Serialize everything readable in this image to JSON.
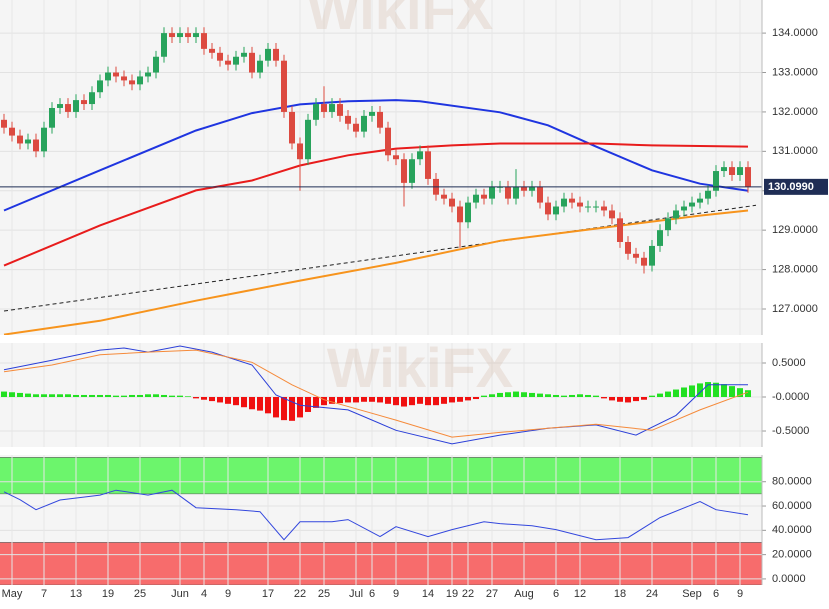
{
  "chart_data": [
    {
      "type": "candlestick",
      "open": [
        131.8,
        131.6,
        131.4,
        131.2,
        131.3,
        131.0,
        131.6,
        132.1,
        132.2,
        132.0,
        132.3,
        132.2,
        132.5,
        132.8,
        133.0,
        132.9,
        132.8,
        132.7,
        132.9,
        133.0,
        133.4,
        134.0,
        133.9,
        134.0,
        133.9,
        134.0,
        133.6,
        133.5,
        133.3,
        133.2,
        133.4,
        133.5,
        133.0,
        133.3,
        133.6,
        133.3,
        132.0,
        131.2,
        130.8,
        131.8,
        132.2,
        132.0,
        132.2,
        131.9,
        131.7,
        131.5,
        131.9,
        132.0,
        131.6,
        130.9,
        130.8,
        130.2,
        130.8,
        131.0,
        130.3,
        129.9,
        129.8,
        129.6,
        129.2,
        129.7,
        129.9,
        129.8,
        130.1,
        130.1,
        129.8,
        130.1,
        130.0,
        130.1,
        129.7,
        129.4,
        129.6,
        129.8,
        129.7,
        129.6,
        129.6,
        129.6,
        129.5,
        129.3,
        128.7,
        128.4,
        128.3,
        128.1,
        128.6,
        129.0,
        129.3,
        129.5,
        129.6,
        129.7,
        129.8,
        130.0,
        130.5,
        130.6,
        130.4,
        130.6
      ],
      "high": [
        131.95,
        131.75,
        131.55,
        131.45,
        131.45,
        131.75,
        132.25,
        132.35,
        132.35,
        132.45,
        132.45,
        132.65,
        132.95,
        133.15,
        133.15,
        133.05,
        132.95,
        133.05,
        133.15,
        133.55,
        134.15,
        134.15,
        134.15,
        134.15,
        134.15,
        134.15,
        133.75,
        133.65,
        133.45,
        133.55,
        133.65,
        133.65,
        133.45,
        133.75,
        133.75,
        133.45,
        132.15,
        131.35,
        131.95,
        132.35,
        132.65,
        132.35,
        132.35,
        132.05,
        131.85,
        132.05,
        132.15,
        132.15,
        131.75,
        131.05,
        130.95,
        130.95,
        131.15,
        131.15,
        130.45,
        130.05,
        129.95,
        129.75,
        129.85,
        130.05,
        130.05,
        130.25,
        130.25,
        130.25,
        130.55,
        130.25,
        130.25,
        130.25,
        129.85,
        129.75,
        129.95,
        129.95,
        129.85,
        129.75,
        129.75,
        129.75,
        129.65,
        129.45,
        128.85,
        128.55,
        128.45,
        128.75,
        129.15,
        129.45,
        129.65,
        129.75,
        129.85,
        129.95,
        130.15,
        130.65,
        130.75,
        130.75,
        130.75,
        130.75
      ],
      "low": [
        131.45,
        131.25,
        131.05,
        131.05,
        130.85,
        130.85,
        131.45,
        131.95,
        131.85,
        131.85,
        132.05,
        132.05,
        132.35,
        132.65,
        132.75,
        132.65,
        132.55,
        132.55,
        132.75,
        132.85,
        133.25,
        133.75,
        133.75,
        133.75,
        133.75,
        133.45,
        133.35,
        133.15,
        133.05,
        133.05,
        133.25,
        132.85,
        132.85,
        133.15,
        133.15,
        131.85,
        131.05,
        130.0,
        130.65,
        131.65,
        131.85,
        131.85,
        131.75,
        131.55,
        131.35,
        131.35,
        131.75,
        131.45,
        130.75,
        130.65,
        129.6,
        130.05,
        130.65,
        130.15,
        129.75,
        129.65,
        129.45,
        128.55,
        129.05,
        129.55,
        129.65,
        129.65,
        129.95,
        129.65,
        129.65,
        129.85,
        129.85,
        129.55,
        129.25,
        129.25,
        129.45,
        129.55,
        129.45,
        129.45,
        129.45,
        129.35,
        129.15,
        128.55,
        128.25,
        128.15,
        127.9,
        127.95,
        128.45,
        128.85,
        129.15,
        129.35,
        129.45,
        129.55,
        129.65,
        129.85,
        130.35,
        130.25,
        130.25,
        129.95
      ],
      "close": [
        131.6,
        131.4,
        131.2,
        131.3,
        131.0,
        131.6,
        132.1,
        132.2,
        132.0,
        132.3,
        132.2,
        132.5,
        132.8,
        133.0,
        132.9,
        132.8,
        132.7,
        132.9,
        133.0,
        133.4,
        134.0,
        133.9,
        134.0,
        133.9,
        134.0,
        133.6,
        133.5,
        133.3,
        133.2,
        133.4,
        133.5,
        133.0,
        133.3,
        133.6,
        133.3,
        132.0,
        131.2,
        130.8,
        131.8,
        132.2,
        132.0,
        132.2,
        131.9,
        131.7,
        131.5,
        131.9,
        132.0,
        131.6,
        130.9,
        130.8,
        130.2,
        130.8,
        131.0,
        130.3,
        129.9,
        129.8,
        129.6,
        129.2,
        129.7,
        129.9,
        129.8,
        130.1,
        130.1,
        129.8,
        130.1,
        130.0,
        130.1,
        129.7,
        129.4,
        129.6,
        129.8,
        129.7,
        129.6,
        129.6,
        129.6,
        129.5,
        129.3,
        128.7,
        128.4,
        128.3,
        128.1,
        128.6,
        129.0,
        129.3,
        129.5,
        129.6,
        129.7,
        129.8,
        130.0,
        130.5,
        130.6,
        130.4,
        130.6,
        130.1
      ],
      "up_color": "#28a35c",
      "down_color": "#dc4a40",
      "ylim": [
        126.34,
        134.84
      ],
      "yticks": [
        {
          "value": 127,
          "label": "127.0000"
        },
        {
          "value": 128,
          "label": "128.0000"
        },
        {
          "value": 129,
          "label": "129.0000"
        },
        {
          "value": 130,
          "label": "130.0000"
        },
        {
          "value": 131,
          "label": "131.0000"
        },
        {
          "value": 132,
          "label": "132.0000"
        },
        {
          "value": 133,
          "label": "133.0000"
        },
        {
          "value": 134,
          "label": "134.0000"
        }
      ],
      "last_price": {
        "value": 130.099,
        "label": "130.0990"
      },
      "last_price_color": "#1f2d55",
      "series": [
        {
          "color": "#1f35e0",
          "x": [
            0,
            12,
            24,
            31,
            37,
            43,
            49,
            52,
            62,
            68,
            74,
            81,
            87,
            93
          ],
          "values": [
            129.5,
            130.52,
            131.53,
            131.97,
            132.19,
            132.27,
            132.3,
            132.27,
            131.99,
            131.66,
            131.12,
            130.52,
            130.18,
            130.0
          ]
        },
        {
          "color": "#e81c1c",
          "x": [
            0,
            12,
            24,
            31,
            37,
            43,
            49,
            56,
            62,
            74,
            81,
            93
          ],
          "values": [
            128.1,
            129.12,
            130.01,
            130.26,
            130.64,
            130.9,
            131.07,
            131.15,
            131.2,
            131.2,
            131.15,
            131.12
          ]
        },
        {
          "color": "#f7941d",
          "x": [
            0,
            12,
            24,
            37,
            49,
            62,
            74,
            87,
            93
          ],
          "values": [
            126.35,
            126.7,
            127.21,
            127.72,
            128.17,
            128.73,
            129.04,
            129.37,
            129.5
          ]
        }
      ],
      "trendline": {
        "color": "#222222",
        "x": [
          0,
          94
        ],
        "values": [
          126.95,
          129.63
        ]
      },
      "grid": true,
      "watermark": "WikiFX"
    },
    {
      "type": "macd",
      "histogram": [
        0.08,
        0.07,
        0.06,
        0.05,
        0.04,
        0.04,
        0.04,
        0.04,
        0.04,
        0.03,
        0.03,
        0.03,
        0.03,
        0.03,
        0.02,
        0.02,
        0.03,
        0.03,
        0.04,
        0.04,
        0.03,
        0.02,
        0.02,
        0.01,
        -0.02,
        -0.04,
        -0.06,
        -0.08,
        -0.1,
        -0.12,
        -0.15,
        -0.18,
        -0.2,
        -0.24,
        -0.3,
        -0.34,
        -0.35,
        -0.3,
        -0.22,
        -0.16,
        -0.12,
        -0.1,
        -0.09,
        -0.08,
        -0.08,
        -0.07,
        -0.07,
        -0.08,
        -0.1,
        -0.12,
        -0.14,
        -0.12,
        -0.1,
        -0.12,
        -0.12,
        -0.1,
        -0.08,
        -0.07,
        -0.05,
        -0.03,
        0.02,
        0.04,
        0.06,
        0.07,
        0.08,
        0.07,
        0.06,
        0.05,
        0.04,
        0.03,
        0.02,
        0.03,
        0.04,
        0.03,
        0.02,
        -0.02,
        -0.05,
        -0.07,
        -0.08,
        -0.06,
        -0.04,
        0.02,
        0.05,
        0.08,
        0.11,
        0.14,
        0.17,
        0.2,
        0.22,
        0.21,
        0.19,
        0.16,
        0.13,
        0.1
      ],
      "positive_color": "#22e022",
      "negative_color": "#f01010",
      "series": [
        {
          "color": "#2b3fd8",
          "x": [
            0,
            6,
            12,
            15,
            18,
            22,
            26,
            31,
            34,
            37,
            43,
            49,
            56,
            62,
            68,
            74,
            79,
            84,
            88,
            93
          ],
          "values": [
            0.4,
            0.54,
            0.69,
            0.72,
            0.66,
            0.75,
            0.66,
            0.47,
            0.03,
            -0.12,
            -0.19,
            -0.49,
            -0.69,
            -0.56,
            -0.46,
            -0.41,
            -0.56,
            -0.27,
            0.18,
            0.18
          ]
        },
        {
          "color": "#f58a3a",
          "x": [
            0,
            6,
            12,
            18,
            24,
            31,
            36,
            40,
            49,
            56,
            62,
            68,
            74,
            81,
            87,
            93
          ],
          "values": [
            0.37,
            0.47,
            0.62,
            0.66,
            0.69,
            0.51,
            0.18,
            -0.04,
            -0.34,
            -0.59,
            -0.52,
            -0.46,
            -0.4,
            -0.49,
            -0.19,
            0.07
          ]
        }
      ],
      "ylim": [
        -0.735,
        0.794
      ],
      "yticks": [
        {
          "value": -0.5,
          "label": "-0.5000"
        },
        {
          "value": 0,
          "label": "-0.0000"
        },
        {
          "value": 0.5,
          "label": "0.5000"
        }
      ],
      "watermark": "WikiFX"
    },
    {
      "type": "line",
      "categories": [
        null,
        "May",
        null,
        null,
        null,
        "7",
        null,
        null,
        null,
        "13",
        null,
        null,
        null,
        "19",
        null,
        null,
        null,
        "25",
        null,
        null,
        null,
        null,
        "Jun",
        null,
        null,
        "4",
        null,
        null,
        "9",
        null,
        null,
        null,
        null,
        "17",
        null,
        null,
        null,
        "22",
        null,
        null,
        "25",
        null,
        null,
        null,
        "Jul",
        null,
        "6",
        null,
        null,
        "9",
        null,
        null,
        null,
        "14",
        null,
        null,
        "19",
        null,
        "22",
        null,
        null,
        "27",
        null,
        null,
        null,
        "Aug",
        null,
        null,
        null,
        "6",
        null,
        null,
        "12",
        null,
        null,
        null,
        null,
        "18",
        null,
        null,
        null,
        "24",
        null,
        null,
        null,
        null,
        "Sep",
        null,
        null,
        "6",
        null,
        null,
        "9",
        null
      ],
      "series": [
        {
          "color": "#3347dd",
          "x": [
            0,
            2,
            4,
            7,
            12,
            14,
            18,
            21,
            24,
            29,
            32,
            35,
            37,
            41,
            43,
            47,
            49,
            53,
            56,
            60,
            62,
            66,
            69,
            74,
            78,
            82,
            87,
            89,
            93
          ],
          "values": [
            71.7,
            65.2,
            57,
            65,
            69,
            73,
            69,
            73,
            58.6,
            57,
            55.3,
            32.3,
            47,
            47,
            48.8,
            34.8,
            43,
            34.8,
            40.6,
            47,
            45.5,
            43.7,
            40.6,
            32.3,
            34,
            50.5,
            63.7,
            57,
            52.8
          ]
        }
      ],
      "zones": [
        {
          "from": 70,
          "to": 100,
          "color": "#6cf56c"
        },
        {
          "from": -5,
          "to": 30,
          "color": "#f76c6c"
        }
      ],
      "ylim": [
        -5,
        102
      ],
      "yticks": [
        {
          "value": 0,
          "label": "0.0000"
        },
        {
          "value": 20,
          "label": "20.0000"
        },
        {
          "value": 40,
          "label": "40.0000"
        },
        {
          "value": 60,
          "label": "60.0000"
        },
        {
          "value": 80,
          "label": "80.0000"
        }
      ]
    }
  ]
}
